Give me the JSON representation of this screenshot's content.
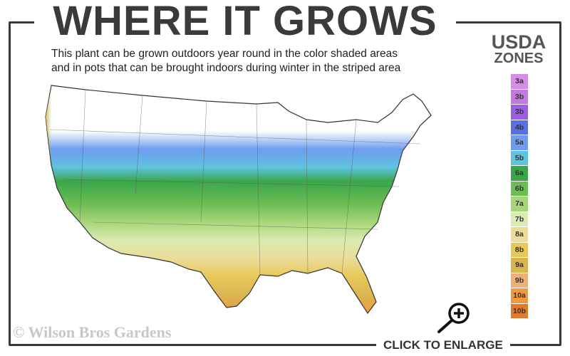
{
  "header": {
    "title": "WHERE IT GROWS",
    "subtitle_line1": "This plant can be grown outdoors year round in the color shaded areas",
    "subtitle_line2": "and in pots that can be brought indoors during winter in the striped area"
  },
  "legend": {
    "title_line1": "USDA",
    "title_line2": "ZONES",
    "zones": [
      {
        "label": "3a",
        "color": "#d68ee4"
      },
      {
        "label": "3b",
        "color": "#c477dc"
      },
      {
        "label": "3b",
        "color": "#9a5ee0"
      },
      {
        "label": "4b",
        "color": "#5a6fe0"
      },
      {
        "label": "5a",
        "color": "#6e9df0"
      },
      {
        "label": "5b",
        "color": "#5fc3e0"
      },
      {
        "label": "6a",
        "color": "#3aa64a"
      },
      {
        "label": "6b",
        "color": "#6cbd55"
      },
      {
        "label": "7a",
        "color": "#a9d57a"
      },
      {
        "label": "7b",
        "color": "#dcebb0"
      },
      {
        "label": "8a",
        "color": "#ecdc9a"
      },
      {
        "label": "8b",
        "color": "#e8c858"
      },
      {
        "label": "9a",
        "color": "#d9b552"
      },
      {
        "label": "9b",
        "color": "#efb07a"
      },
      {
        "label": "10a",
        "color": "#ef9a3e"
      },
      {
        "label": "10b",
        "color": "#e07a2c"
      }
    ]
  },
  "footer": {
    "copyright": "© Wilson Bros Gardens",
    "enlarge_label": "CLICK TO ENLARGE",
    "enlarge_icon": "magnifier-plus-icon"
  }
}
